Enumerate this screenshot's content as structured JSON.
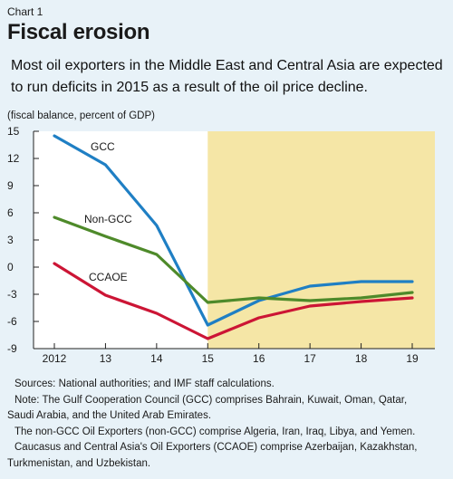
{
  "header": {
    "chart_label": "Chart 1",
    "title": "Fiscal erosion",
    "subtitle_lines": [
      "Most oil exporters in the Middle East and Central Asia are expected",
      "to run deficits in 2015 as a result of the oil price decline."
    ],
    "unit_label": "(fiscal balance, percent of GDP)"
  },
  "chart_data": {
    "type": "line",
    "x": [
      2012,
      2013,
      2014,
      2015,
      2016,
      2017,
      2018,
      2019
    ],
    "x_tick_labels": [
      "2012",
      "13",
      "14",
      "15",
      "16",
      "17",
      "18",
      "19"
    ],
    "y_ticks": [
      15,
      12,
      9,
      6,
      3,
      0,
      -3,
      -6,
      -9
    ],
    "ylim": [
      -9,
      15
    ],
    "projection_shading_from": 2015,
    "series": [
      {
        "name": "GCC",
        "color": "#1f7fc4",
        "values": [
          14.5,
          11.3,
          4.6,
          -6.4,
          -3.7,
          -2.1,
          -1.6,
          -1.6
        ]
      },
      {
        "name": "Non-GCC",
        "color": "#4e8a2a",
        "values": [
          5.5,
          3.4,
          1.4,
          -3.9,
          -3.4,
          -3.7,
          -3.4,
          -2.8
        ]
      },
      {
        "name": "CCAOE",
        "color": "#cc1535",
        "values": [
          0.4,
          -3.1,
          -5.1,
          -7.9,
          -5.6,
          -4.3,
          -3.8,
          -3.4
        ]
      }
    ],
    "colors": {
      "shading": "#f5e6a6",
      "plot_background": "#ffffff",
      "axis": "#222222"
    }
  },
  "notes": {
    "sources": "Sources: National authorities; and IMF staff calculations.",
    "note_lines": [
      "Note: The Gulf Cooperation Council (GCC) comprises Bahrain, Kuwait, Oman, Qatar,",
      "Saudi Arabia, and the United Arab Emirates.",
      "The non-GCC Oil Exporters (non-GCC) comprise Algeria, Iran, Iraq, Libya, and Yemen.",
      "Caucasus and Central Asia's Oil Exporters (CCAOE) comprise Azerbaijan, Kazakhstan,",
      "Turkmenistan, and Uzbekistan."
    ]
  }
}
